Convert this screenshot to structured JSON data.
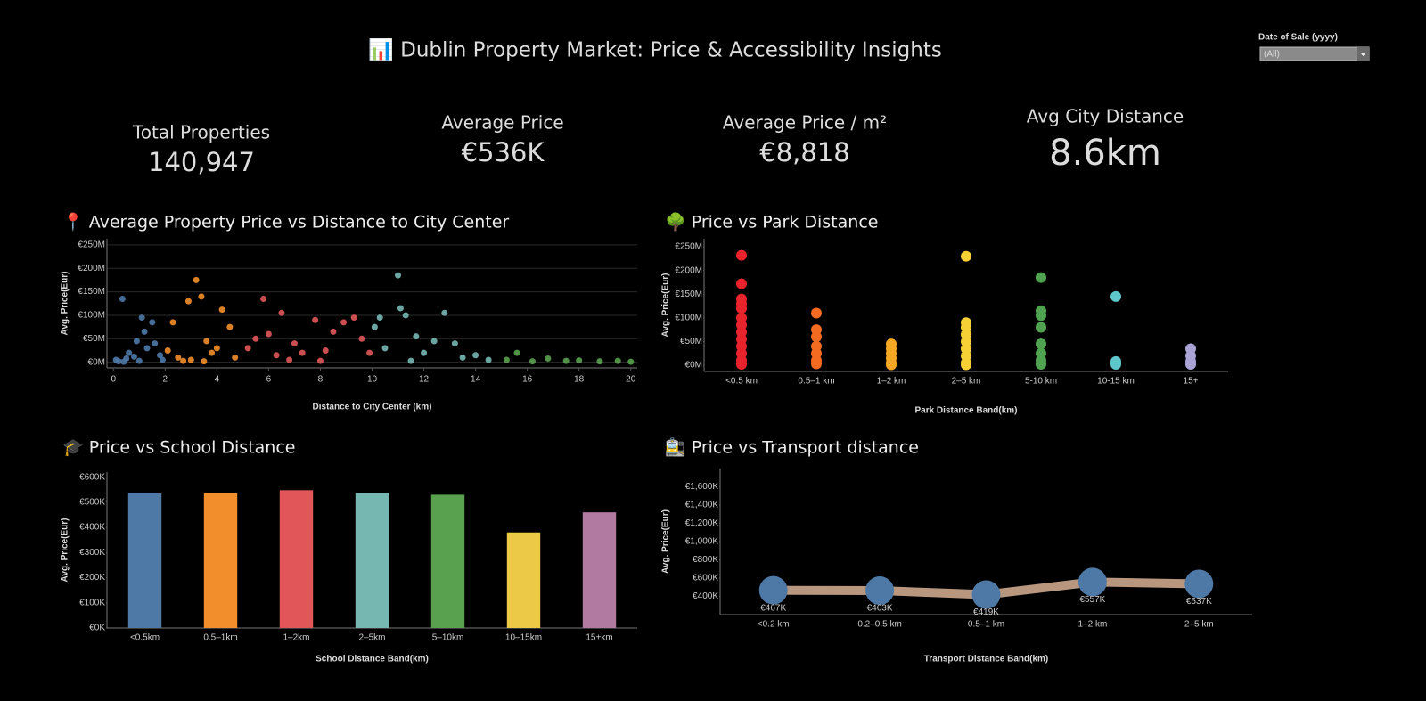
{
  "header": {
    "title": "📊 Dublin Property Market: Price & Accessibility Insights"
  },
  "filter": {
    "label": "Date of Sale (yyyy)",
    "value": "(All)"
  },
  "kpis": [
    {
      "label": "Total Properties",
      "value": "140,947"
    },
    {
      "label": "Average Price",
      "value": "€536K"
    },
    {
      "label": "Average Price / m²",
      "value": "€8,818"
    },
    {
      "label": "Avg City Distance",
      "value": "8.6km"
    }
  ],
  "chart_data": [
    {
      "type": "scatter",
      "title": "📍 Average Property Price vs Distance to City Center",
      "x_label": "Distance to City Center (km)",
      "y_label": "Avg. Price(Eur)",
      "xlim": [
        -0.25,
        20.25
      ],
      "xticks": [
        0,
        2,
        4,
        6,
        8,
        10,
        12,
        14,
        16,
        18,
        20
      ],
      "ylim": [
        -12,
        263
      ],
      "yticks": [
        {
          "value": 0,
          "label": "€0M"
        },
        {
          "value": 50,
          "label": "€50M"
        },
        {
          "value": 100,
          "label": "€100M"
        },
        {
          "value": 150,
          "label": "€150M"
        },
        {
          "value": 200,
          "label": "€200M"
        },
        {
          "value": 250,
          "label": "€250M"
        }
      ],
      "grid": true,
      "series": [
        {
          "color": "#4e79a7",
          "x": [
            0.1,
            0.2,
            0.35,
            0.5,
            0.6,
            0.8,
            0.9,
            1.1,
            1.2,
            1.3,
            1.5,
            1.6,
            1.8,
            1.9,
            1.0,
            0.4
          ],
          "values": [
            5,
            2,
            135,
            8,
            20,
            12,
            45,
            95,
            65,
            30,
            85,
            40,
            15,
            5,
            3,
            1
          ]
        },
        {
          "color": "#f28e2b",
          "x": [
            2.1,
            2.3,
            2.5,
            2.9,
            3.0,
            3.2,
            3.4,
            3.6,
            3.8,
            4.0,
            4.2,
            4.5,
            4.7,
            2.7,
            3.5
          ],
          "values": [
            25,
            85,
            10,
            130,
            5,
            175,
            140,
            45,
            20,
            30,
            112,
            75,
            10,
            3,
            2
          ]
        },
        {
          "color": "#e15759",
          "x": [
            5.2,
            5.5,
            5.8,
            6.0,
            6.3,
            6.5,
            7.0,
            7.3,
            7.8,
            8.2,
            8.5,
            8.9,
            9.3,
            9.6,
            9.9,
            6.8,
            8.0
          ],
          "values": [
            30,
            50,
            135,
            60,
            15,
            105,
            40,
            20,
            90,
            25,
            65,
            85,
            95,
            50,
            20,
            5,
            3
          ]
        },
        {
          "color": "#76b7b2",
          "x": [
            10.1,
            10.3,
            10.5,
            11.0,
            11.1,
            11.3,
            11.7,
            12.0,
            12.4,
            12.8,
            13.2,
            13.5,
            14.0,
            14.5,
            11.5
          ],
          "values": [
            75,
            95,
            30,
            185,
            115,
            100,
            55,
            20,
            45,
            105,
            40,
            10,
            15,
            5,
            3
          ]
        },
        {
          "color": "#59a14f",
          "x": [
            15.2,
            15.6,
            16.2,
            16.8,
            17.5,
            18.0,
            18.8,
            19.5,
            20.0
          ],
          "values": [
            5,
            20,
            2,
            8,
            3,
            4,
            2,
            3,
            1
          ]
        }
      ]
    },
    {
      "type": "strip",
      "title": "🌳 Price vs Park Distance",
      "x_label": "Park Distance Band(km)",
      "y_label": "Avg. Price(Eur)",
      "categories": [
        "<0.5 km",
        "0.5–1 km",
        "1–2 km",
        "2–5 km",
        "5-10 km",
        "10-15 km",
        "15+"
      ],
      "colors": [
        "#e8232b",
        "#f26b21",
        "#f5a623",
        "#f7d036",
        "#4fa24f",
        "#5ec7cc",
        "#a9a3d6"
      ],
      "values": [
        [
          232,
          172,
          140,
          130,
          120,
          100,
          85,
          70,
          55,
          40,
          25,
          10,
          2
        ],
        [
          110,
          75,
          60,
          40,
          25,
          10,
          3
        ],
        [
          45,
          35,
          25,
          15,
          5,
          1
        ],
        [
          230,
          90,
          80,
          65,
          50,
          35,
          20,
          5,
          1
        ],
        [
          185,
          115,
          105,
          80,
          45,
          25,
          10,
          2
        ],
        [
          145,
          8,
          2
        ],
        [
          35,
          20,
          8,
          2
        ]
      ],
      "ylim": [
        -13,
        267
      ],
      "yticks": [
        {
          "value": 0,
          "label": "€0M"
        },
        {
          "value": 50,
          "label": "€50M"
        },
        {
          "value": 100,
          "label": "€100M"
        },
        {
          "value": 150,
          "label": "€150M"
        },
        {
          "value": 200,
          "label": "€200M"
        },
        {
          "value": 250,
          "label": "€250M"
        }
      ]
    },
    {
      "type": "bar",
      "title": "🎓 Price vs School Distance",
      "x_label": "School Distance Band(km)",
      "y_label": "Avg. Price(Eur)",
      "categories": [
        "<0.5km",
        "0.5–1km",
        "1–2km",
        "2–5km",
        "5–10km",
        "10–15km",
        "15+km"
      ],
      "colors": [
        "#4e79a7",
        "#f28e2b",
        "#e15759",
        "#76b7b2",
        "#59a14f",
        "#edc948",
        "#b07aa1"
      ],
      "values": [
        535,
        535,
        548,
        537,
        530,
        380,
        460
      ],
      "ylim": [
        0,
        620
      ],
      "yticks": [
        {
          "value": 0,
          "label": "€0K"
        },
        {
          "value": 100,
          "label": "€100K"
        },
        {
          "value": 200,
          "label": "€200K"
        },
        {
          "value": 300,
          "label": "€300K"
        },
        {
          "value": 400,
          "label": "€400K"
        },
        {
          "value": 500,
          "label": "€500K"
        },
        {
          "value": 600,
          "label": "€600K"
        }
      ]
    },
    {
      "type": "line",
      "title": "🚉 Price vs Transport distance",
      "x_label": "Transport Distance Band(km)",
      "y_label": "Avg. Price(Eur)",
      "categories": [
        "<0.2 km",
        "0.2–0.5 km",
        "0.5–1 km",
        "1–2 km",
        "2–5 km"
      ],
      "values": [
        467,
        463,
        419,
        557,
        537
      ],
      "value_labels": [
        "€467K",
        "€463K",
        "€419K",
        "€557K",
        "€537K"
      ],
      "line_color": "#b8977e",
      "marker_color": "#4e79a7",
      "ylim": [
        200,
        1800
      ],
      "yticks": [
        {
          "value": 400,
          "label": "€400K"
        },
        {
          "value": 600,
          "label": "€600K"
        },
        {
          "value": 800,
          "label": "€800K"
        },
        {
          "value": 1000,
          "label": "€1,000K"
        },
        {
          "value": 1200,
          "label": "€1,200K"
        },
        {
          "value": 1400,
          "label": "€1,400K"
        },
        {
          "value": 1600,
          "label": "€1,600K"
        }
      ]
    }
  ]
}
